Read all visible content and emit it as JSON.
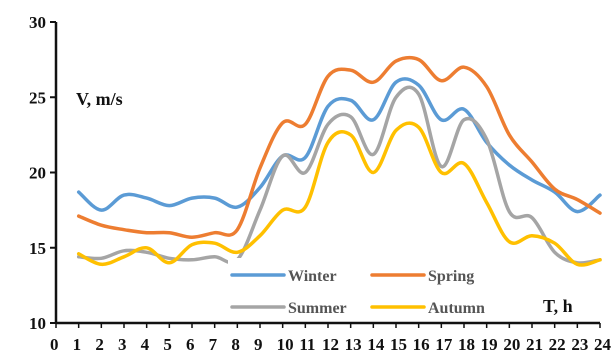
{
  "chart_data": {
    "type": "line",
    "title": "",
    "xlabel": "T, h",
    "ylabel": "V, m/s",
    "x": [
      0,
      1,
      2,
      3,
      4,
      5,
      6,
      7,
      8,
      9,
      10,
      11,
      12,
      13,
      14,
      15,
      16,
      17,
      18,
      19,
      20,
      21,
      22,
      23,
      24
    ],
    "x_tick_labels": [
      "0",
      "1",
      "2",
      "3",
      "4",
      "5",
      "6",
      "7",
      "8",
      "9",
      "10",
      "11",
      "12",
      "13",
      "14",
      "15",
      "16",
      "17",
      "18",
      "19",
      "20",
      "21",
      "22",
      "23",
      "24"
    ],
    "ylim": [
      10,
      30
    ],
    "y_ticks": [
      10,
      15,
      20,
      25,
      30
    ],
    "grid": false,
    "legend_position": "bottom-center",
    "series": [
      {
        "name": "Winter",
        "color": "#5b9bd5",
        "x": [
          1,
          2,
          3,
          4,
          5,
          6,
          7,
          8,
          9,
          10,
          11,
          12,
          13,
          14,
          15,
          16,
          17,
          18,
          19,
          20,
          21,
          22,
          23,
          24
        ],
        "values": [
          18.7,
          17.5,
          18.5,
          18.3,
          17.8,
          18.3,
          18.3,
          17.7,
          19.0,
          21.1,
          21.0,
          24.4,
          24.8,
          23.5,
          26.0,
          25.8,
          23.5,
          24.2,
          22.0,
          20.5,
          19.5,
          18.7,
          17.4,
          18.5
        ]
      },
      {
        "name": "Spring",
        "color": "#ed7d31",
        "x": [
          1,
          2,
          3,
          4,
          5,
          6,
          7,
          8,
          9,
          10,
          11,
          12,
          13,
          14,
          15,
          16,
          17,
          18,
          19,
          20,
          21,
          22,
          23,
          24
        ],
        "values": [
          17.1,
          16.5,
          16.2,
          16.0,
          16.0,
          15.7,
          16.0,
          16.2,
          20.3,
          23.3,
          23.2,
          26.4,
          26.8,
          26.0,
          27.4,
          27.5,
          26.1,
          27.0,
          25.7,
          22.5,
          20.7,
          18.9,
          18.2,
          17.3
        ]
      },
      {
        "name": "Summer",
        "color": "#a5a5a5",
        "x": [
          1,
          2,
          3,
          4,
          5,
          6,
          7,
          8,
          9,
          10,
          11,
          12,
          13,
          14,
          15,
          16,
          17,
          18,
          19,
          20,
          21,
          22,
          23,
          24
        ],
        "values": [
          14.4,
          14.3,
          14.8,
          14.7,
          14.3,
          14.2,
          14.4,
          14.2,
          17.5,
          21.1,
          20.0,
          23.2,
          23.7,
          21.2,
          25.0,
          25.2,
          20.4,
          23.5,
          22.2,
          17.4,
          17.0,
          14.7,
          14.0,
          14.2
        ]
      },
      {
        "name": "Autumn",
        "color": "#ffc000",
        "x": [
          1,
          2,
          3,
          4,
          5,
          6,
          7,
          8,
          9,
          10,
          11,
          12,
          13,
          14,
          15,
          16,
          17,
          18,
          19,
          20,
          21,
          22,
          23,
          24
        ],
        "values": [
          14.6,
          13.9,
          14.4,
          15.0,
          14.0,
          15.2,
          15.3,
          14.7,
          15.8,
          17.5,
          17.7,
          22.0,
          22.5,
          20.0,
          22.8,
          23.0,
          20.0,
          20.6,
          18.0,
          15.4,
          15.8,
          15.3,
          13.9,
          14.2
        ]
      }
    ]
  }
}
